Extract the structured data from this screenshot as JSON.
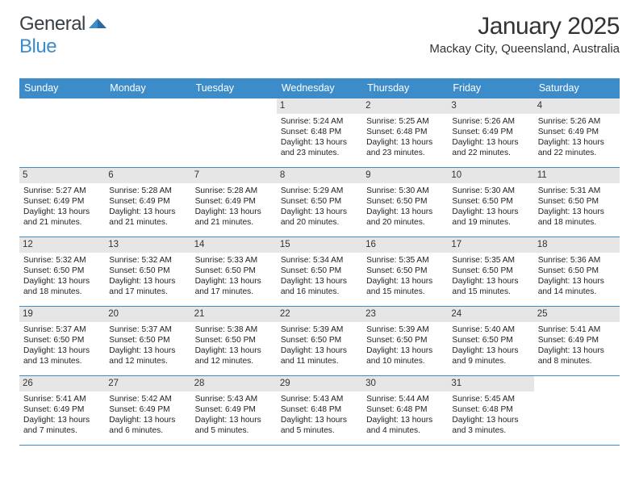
{
  "logo": {
    "word1": "General",
    "word2": "Blue"
  },
  "title": "January 2025",
  "location": "Mackay City, Queensland, Australia",
  "colors": {
    "header_bg": "#3c8cc9",
    "header_text": "#ffffff",
    "daynum_bg": "#e6e6e6",
    "row_border": "#3c8cc9",
    "body_text": "#222222",
    "title_text": "#333333"
  },
  "weekdays": [
    "Sunday",
    "Monday",
    "Tuesday",
    "Wednesday",
    "Thursday",
    "Friday",
    "Saturday"
  ],
  "weeks": [
    [
      {
        "n": null
      },
      {
        "n": null
      },
      {
        "n": null
      },
      {
        "n": "1",
        "sunrise": "5:24 AM",
        "sunset": "6:48 PM",
        "daylight": "13 hours and 23 minutes."
      },
      {
        "n": "2",
        "sunrise": "5:25 AM",
        "sunset": "6:48 PM",
        "daylight": "13 hours and 23 minutes."
      },
      {
        "n": "3",
        "sunrise": "5:26 AM",
        "sunset": "6:49 PM",
        "daylight": "13 hours and 22 minutes."
      },
      {
        "n": "4",
        "sunrise": "5:26 AM",
        "sunset": "6:49 PM",
        "daylight": "13 hours and 22 minutes."
      }
    ],
    [
      {
        "n": "5",
        "sunrise": "5:27 AM",
        "sunset": "6:49 PM",
        "daylight": "13 hours and 21 minutes."
      },
      {
        "n": "6",
        "sunrise": "5:28 AM",
        "sunset": "6:49 PM",
        "daylight": "13 hours and 21 minutes."
      },
      {
        "n": "7",
        "sunrise": "5:28 AM",
        "sunset": "6:49 PM",
        "daylight": "13 hours and 21 minutes."
      },
      {
        "n": "8",
        "sunrise": "5:29 AM",
        "sunset": "6:50 PM",
        "daylight": "13 hours and 20 minutes."
      },
      {
        "n": "9",
        "sunrise": "5:30 AM",
        "sunset": "6:50 PM",
        "daylight": "13 hours and 20 minutes."
      },
      {
        "n": "10",
        "sunrise": "5:30 AM",
        "sunset": "6:50 PM",
        "daylight": "13 hours and 19 minutes."
      },
      {
        "n": "11",
        "sunrise": "5:31 AM",
        "sunset": "6:50 PM",
        "daylight": "13 hours and 18 minutes."
      }
    ],
    [
      {
        "n": "12",
        "sunrise": "5:32 AM",
        "sunset": "6:50 PM",
        "daylight": "13 hours and 18 minutes."
      },
      {
        "n": "13",
        "sunrise": "5:32 AM",
        "sunset": "6:50 PM",
        "daylight": "13 hours and 17 minutes."
      },
      {
        "n": "14",
        "sunrise": "5:33 AM",
        "sunset": "6:50 PM",
        "daylight": "13 hours and 17 minutes."
      },
      {
        "n": "15",
        "sunrise": "5:34 AM",
        "sunset": "6:50 PM",
        "daylight": "13 hours and 16 minutes."
      },
      {
        "n": "16",
        "sunrise": "5:35 AM",
        "sunset": "6:50 PM",
        "daylight": "13 hours and 15 minutes."
      },
      {
        "n": "17",
        "sunrise": "5:35 AM",
        "sunset": "6:50 PM",
        "daylight": "13 hours and 15 minutes."
      },
      {
        "n": "18",
        "sunrise": "5:36 AM",
        "sunset": "6:50 PM",
        "daylight": "13 hours and 14 minutes."
      }
    ],
    [
      {
        "n": "19",
        "sunrise": "5:37 AM",
        "sunset": "6:50 PM",
        "daylight": "13 hours and 13 minutes."
      },
      {
        "n": "20",
        "sunrise": "5:37 AM",
        "sunset": "6:50 PM",
        "daylight": "13 hours and 12 minutes."
      },
      {
        "n": "21",
        "sunrise": "5:38 AM",
        "sunset": "6:50 PM",
        "daylight": "13 hours and 12 minutes."
      },
      {
        "n": "22",
        "sunrise": "5:39 AM",
        "sunset": "6:50 PM",
        "daylight": "13 hours and 11 minutes."
      },
      {
        "n": "23",
        "sunrise": "5:39 AM",
        "sunset": "6:50 PM",
        "daylight": "13 hours and 10 minutes."
      },
      {
        "n": "24",
        "sunrise": "5:40 AM",
        "sunset": "6:50 PM",
        "daylight": "13 hours and 9 minutes."
      },
      {
        "n": "25",
        "sunrise": "5:41 AM",
        "sunset": "6:49 PM",
        "daylight": "13 hours and 8 minutes."
      }
    ],
    [
      {
        "n": "26",
        "sunrise": "5:41 AM",
        "sunset": "6:49 PM",
        "daylight": "13 hours and 7 minutes."
      },
      {
        "n": "27",
        "sunrise": "5:42 AM",
        "sunset": "6:49 PM",
        "daylight": "13 hours and 6 minutes."
      },
      {
        "n": "28",
        "sunrise": "5:43 AM",
        "sunset": "6:49 PM",
        "daylight": "13 hours and 5 minutes."
      },
      {
        "n": "29",
        "sunrise": "5:43 AM",
        "sunset": "6:48 PM",
        "daylight": "13 hours and 5 minutes."
      },
      {
        "n": "30",
        "sunrise": "5:44 AM",
        "sunset": "6:48 PM",
        "daylight": "13 hours and 4 minutes."
      },
      {
        "n": "31",
        "sunrise": "5:45 AM",
        "sunset": "6:48 PM",
        "daylight": "13 hours and 3 minutes."
      },
      {
        "n": null
      }
    ]
  ],
  "labels": {
    "sunrise": "Sunrise:",
    "sunset": "Sunset:",
    "daylight": "Daylight:"
  }
}
